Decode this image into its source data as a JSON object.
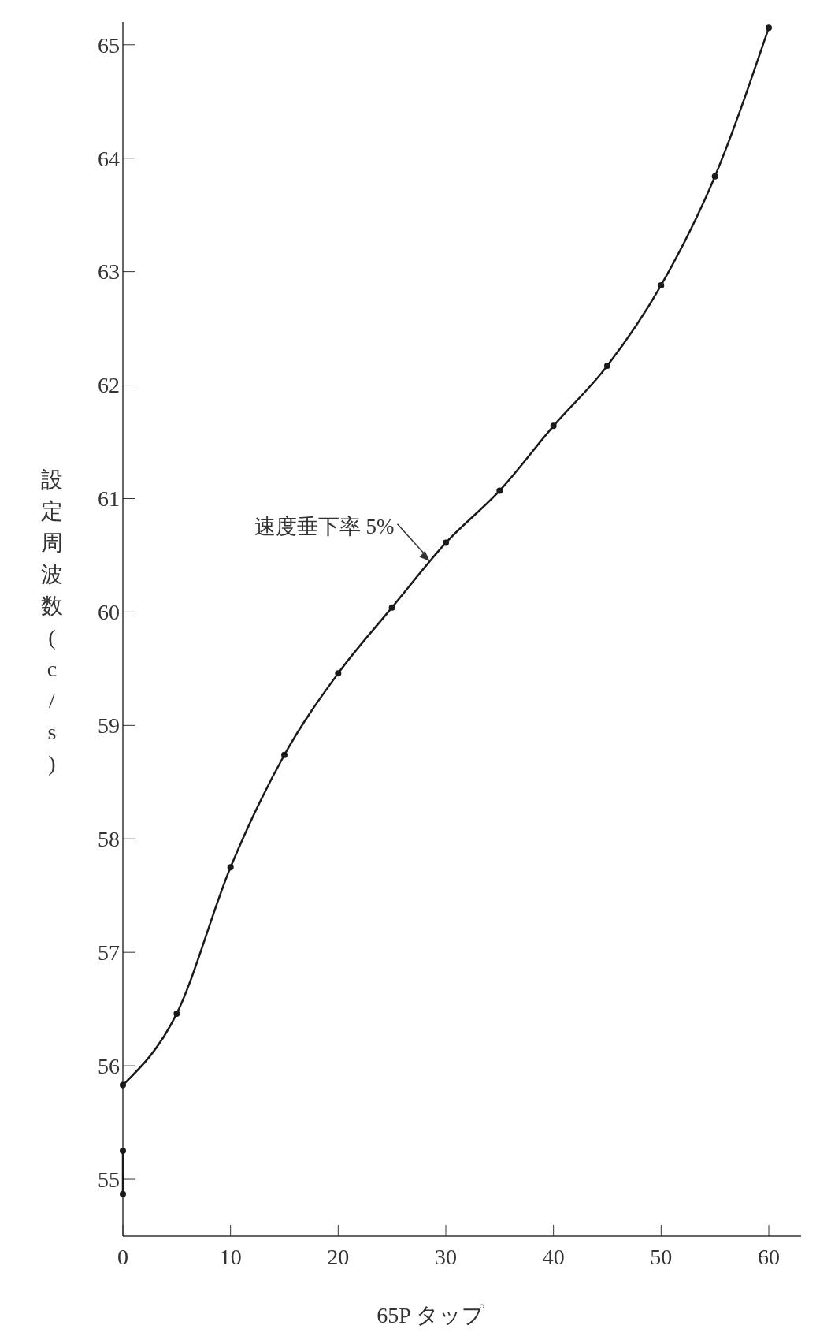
{
  "chart_data": {
    "type": "line",
    "xlabel": "65P タップ",
    "ylabel": "設定周波数 (c/s)",
    "xlim": [
      0,
      63
    ],
    "xticks": [
      0,
      10,
      20,
      30,
      40,
      50,
      60
    ],
    "ylim": [
      54.5,
      65.2
    ],
    "yticks": [
      55,
      56,
      57,
      58,
      59,
      60,
      61,
      62,
      63,
      64,
      65
    ],
    "series": [
      {
        "color": "#1a1a1a",
        "x": [
          0,
          5,
          10,
          15,
          20,
          25,
          30,
          35,
          40,
          45,
          50,
          55,
          60
        ],
        "values": [
          55.83,
          56.46,
          57.75,
          58.74,
          59.46,
          60.04,
          60.61,
          61.07,
          61.64,
          62.17,
          62.88,
          63.84,
          65.15
        ]
      },
      {
        "color": "#1a1a1a",
        "x": [
          0,
          0
        ],
        "values": [
          55.25,
          54.87
        ]
      }
    ],
    "annotations": [
      {
        "text": "速度垂下率 5%",
        "x": 28.5,
        "y": 60.45
      }
    ],
    "marker": "circle",
    "line_style": "solid"
  }
}
